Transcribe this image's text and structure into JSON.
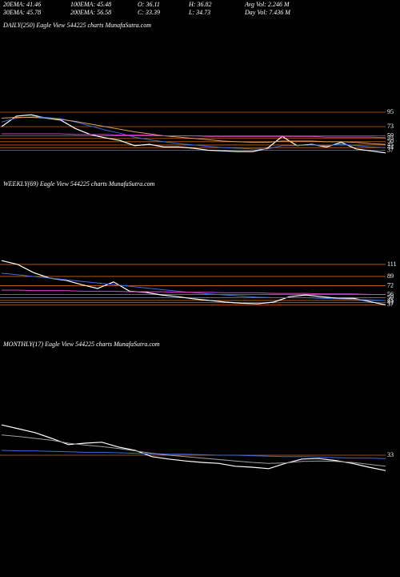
{
  "header": {
    "rows": [
      [
        "20EMA: 41.46",
        "100EMA: 45.48",
        "O: 36.11",
        "H: 36.82",
        "Avg Vol: 2.246  M"
      ],
      [
        "30EMA: 45.78",
        "200EMA: 56.58",
        "C: 33.39",
        "L: 34.73",
        "Day Vol: 7.436  M"
      ]
    ]
  },
  "chart_data": [
    {
      "type": "line",
      "title": "DAILY(250) Eagle   View  544225 charts MunafaSutra.com",
      "ylim": [
        20,
        110
      ],
      "yticks": [
        95,
        73,
        59,
        55,
        50,
        45,
        41,
        37
      ],
      "tick_color": "#c8641e",
      "series": [
        {
          "color": "#ffffff",
          "values": [
            73,
            89,
            91,
            86,
            83,
            70,
            61,
            56,
            52,
            44,
            46,
            42,
            42,
            40,
            37,
            36,
            35,
            35,
            40,
            58,
            44,
            46,
            42,
            49,
            39,
            36,
            33
          ]
        },
        {
          "color": "#3a6fd8",
          "values": [
            80,
            86,
            88,
            87,
            85,
            80,
            74,
            68,
            63,
            57,
            53,
            50,
            47,
            45,
            43,
            41,
            40,
            39,
            39,
            44,
            44,
            45,
            44,
            46,
            44,
            42,
            41
          ]
        },
        {
          "color": "#d8a060",
          "values": [
            86,
            87,
            87,
            86,
            84,
            81,
            77,
            73,
            69,
            65,
            62,
            59,
            57,
            55,
            53,
            51,
            50,
            49,
            49,
            51,
            51,
            51,
            50,
            50,
            49,
            47,
            46
          ]
        },
        {
          "color": "#e040d0",
          "values": [
            62,
            62,
            62,
            62,
            62,
            61,
            61,
            61,
            60,
            60,
            60,
            59,
            59,
            59,
            58,
            58,
            58,
            58,
            58,
            58,
            58,
            58,
            57,
            57,
            57,
            57,
            56
          ]
        }
      ]
    },
    {
      "type": "line",
      "title": "WEEKLY(69) Eagle   View  544225 charts MunafaSutra.com",
      "ylim": [
        20,
        130
      ],
      "yticks": [
        111,
        89,
        72,
        56,
        50,
        45,
        41,
        37
      ],
      "tick_color": "#c8641e",
      "series": [
        {
          "color": "#ffffff",
          "values": [
            118,
            111,
            96,
            86,
            82,
            74,
            67,
            79,
            62,
            60,
            55,
            52,
            48,
            45,
            42,
            40,
            39,
            42,
            52,
            55,
            52,
            49,
            49,
            43,
            37
          ]
        },
        {
          "color": "#3a6fd8",
          "values": [
            95,
            92,
            89,
            86,
            83,
            80,
            77,
            74,
            71,
            68,
            65,
            62,
            59,
            57,
            55,
            53,
            51,
            50,
            50,
            50,
            49,
            48,
            47,
            46,
            45
          ]
        },
        {
          "color": "#e040d0",
          "values": [
            64,
            64,
            63,
            63,
            63,
            62,
            62,
            62,
            61,
            61,
            61,
            60,
            60,
            60,
            59,
            59,
            59,
            58,
            58,
            58,
            57,
            57,
            57,
            56,
            56
          ]
        }
      ]
    },
    {
      "type": "line",
      "title": "MONTHLY(17) Eagle   View  544225 charts MunafaSutra.com",
      "ylim": [
        0,
        110
      ],
      "yticks": [
        33
      ],
      "tick_color": "#c8641e",
      "series": [
        {
          "color": "#ffffff",
          "values": [
            96,
            88,
            80,
            68,
            55,
            58,
            60,
            50,
            43,
            30,
            25,
            21,
            18,
            16,
            10,
            8,
            5,
            16,
            25,
            26,
            22,
            16,
            8,
            1
          ]
        },
        {
          "color": "#3a6fd8",
          "values": [
            43,
            42,
            42,
            41,
            40,
            39,
            39,
            38,
            37,
            36,
            35,
            35,
            34,
            33,
            33,
            32,
            31,
            30,
            30,
            29,
            28,
            27,
            27,
            26
          ]
        },
        {
          "color": "#a0a0a0",
          "values": [
            75,
            72,
            68,
            64,
            58,
            54,
            51,
            47,
            42,
            37,
            33,
            30,
            27,
            24,
            21,
            18,
            16,
            17,
            20,
            21,
            20,
            18,
            14,
            10
          ]
        }
      ]
    }
  ]
}
